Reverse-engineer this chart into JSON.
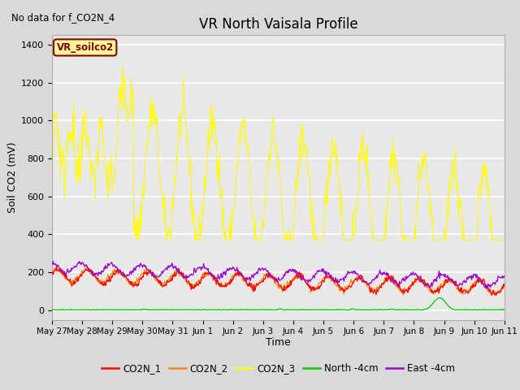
{
  "title": "VR North Vaisala Profile",
  "no_data_text": "No data for f_CO2N_4",
  "ylabel": "Soil CO2 (mV)",
  "xlabel": "Time",
  "n_days": 15,
  "ylim": [
    -50,
    1450
  ],
  "yticks": [
    0,
    200,
    400,
    600,
    800,
    1000,
    1200,
    1400
  ],
  "xtick_labels": [
    "May 27",
    "May 28",
    "May 29",
    "May 30",
    "May 31",
    "Jun 1",
    "Jun 2",
    "Jun 3",
    "Jun 4",
    "Jun 5",
    "Jun 6",
    "Jun 7",
    "Jun 8",
    "Jun 9",
    "Jun 10",
    "Jun 11"
  ],
  "legend_box_text": "VR_soilco2",
  "legend_box_color": "#ffff99",
  "legend_box_edge": "#800000",
  "colors": {
    "CO2N_1": "#ff0000",
    "CO2N_2": "#ff8800",
    "CO2N_3": "#ffff00",
    "North_4cm": "#00cc00",
    "East_4cm": "#9900cc"
  },
  "background_color": "#d9d9d9",
  "plot_bg_color": "#e8e8e8",
  "grid_color": "#ffffff",
  "title_fontsize": 12,
  "label_fontsize": 9,
  "tick_fontsize": 8
}
